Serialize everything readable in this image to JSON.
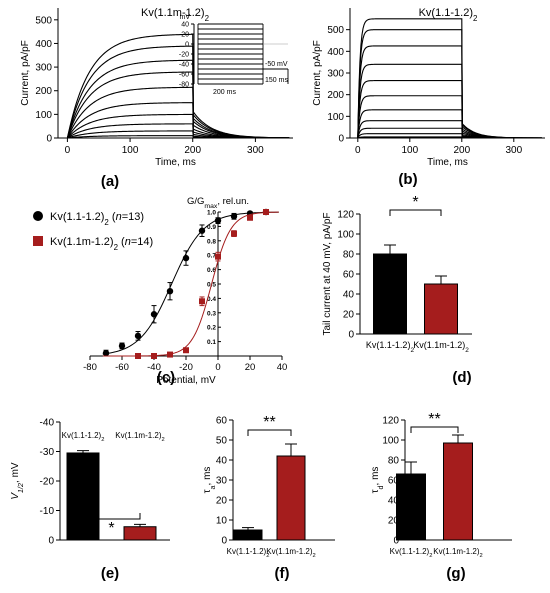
{
  "figure": {
    "panel_labels": [
      "(a)",
      "(b)",
      "(c)",
      "(d)",
      "(e)",
      "(f)",
      "(g)"
    ],
    "colors": {
      "black": "#000000",
      "red": "#a51d1d"
    }
  },
  "chart_data": [
    {
      "id": "a",
      "type": "line",
      "title": "Kv(1.1m-1.2)",
      "title_sub": "2",
      "xlabel": "Time, ms",
      "ylabel": "Current, pA/pF",
      "xlim": [
        -15,
        360
      ],
      "ylim": [
        0,
        550
      ],
      "xticks": [
        0,
        100,
        200,
        300
      ],
      "yticks": [
        0,
        100,
        200,
        300,
        400,
        500
      ],
      "trace_plateaus": [
        10,
        30,
        60,
        100,
        150,
        215,
        280,
        330,
        390,
        440
      ],
      "tail_fraction": 0.25,
      "tail_tau_ms": 30,
      "activation_tau_ms": 35,
      "protocol": {
        "unit_label": "mV",
        "levels_mv": [
          40,
          30,
          20,
          10,
          0,
          -10,
          -20,
          -30,
          -40,
          -50,
          -60,
          -70,
          -80
        ],
        "tick_labels": [
          "40",
          "20",
          "0",
          "-20",
          "-40",
          "-60",
          "-80"
        ],
        "step_label": "200 ms",
        "holding_label": "-50 mV",
        "tail_label": "150 ms"
      }
    },
    {
      "id": "b",
      "type": "line",
      "title": "Kv(1.1-1.2)",
      "title_sub": "2",
      "xlabel": "Time, ms",
      "ylabel": "Current, pA/pF",
      "xlim": [
        -15,
        360
      ],
      "ylim": [
        0,
        600
      ],
      "xticks": [
        0,
        100,
        200,
        300
      ],
      "yticks": [
        0,
        100,
        200,
        300,
        400,
        500
      ],
      "trace_plateaus": [
        5,
        20,
        45,
        80,
        130,
        195,
        265,
        340,
        425,
        500,
        550
      ],
      "tail_fraction": 0.12,
      "tail_tau_ms": 25,
      "activation_tau_ms": 4
    },
    {
      "id": "c",
      "type": "scatter",
      "title": "G/G",
      "title_sub": "max",
      "title_suffix": ", rel.un.",
      "xlabel": "Potential, mV",
      "xlim": [
        -80,
        40
      ],
      "ylim": [
        0,
        1
      ],
      "xticks": [
        -80,
        -60,
        -40,
        -20,
        0,
        20,
        40
      ],
      "yticks": [
        0.1,
        0.2,
        0.3,
        0.4,
        0.5,
        0.6,
        0.7,
        0.8,
        0.9,
        1.0
      ],
      "ytick_labels": [
        "0.1",
        "0.2",
        "0.3",
        "0.4",
        "0.5",
        "0.6",
        "0.7",
        "0.8",
        "0.9",
        "1.0"
      ],
      "series": [
        {
          "name": "Kv(1.1-1.2)",
          "name_sub": "2",
          "name_suffix": " (n=13)",
          "marker": "circle",
          "color": "#000000",
          "x": [
            -70,
            -60,
            -50,
            -40,
            -30,
            -20,
            -10,
            0,
            10,
            20,
            30
          ],
          "y": [
            0.02,
            0.07,
            0.14,
            0.29,
            0.45,
            0.68,
            0.87,
            0.94,
            0.97,
            0.99,
            1.0
          ],
          "err": [
            0.02,
            0.02,
            0.03,
            0.06,
            0.06,
            0.05,
            0.04,
            0.02,
            0.02,
            0.01,
            0.01
          ],
          "boltzmann": {
            "v_half": -29,
            "k": 10
          }
        },
        {
          "name": "Kv(1.1m-1.2)",
          "name_sub": "2",
          "name_suffix": " (n=14)",
          "marker": "square",
          "color": "#a51d1d",
          "x": [
            -50,
            -40,
            -30,
            -20,
            -10,
            0,
            10,
            20,
            30
          ],
          "y": [
            0.0,
            0.0,
            0.01,
            0.04,
            0.38,
            0.69,
            0.85,
            0.96,
            1.0
          ],
          "err": [
            0.0,
            0.0,
            0.01,
            0.01,
            0.03,
            0.03,
            0.02,
            0.01,
            0.0
          ],
          "boltzmann": {
            "v_half": -4,
            "k": 6
          }
        }
      ]
    },
    {
      "id": "d",
      "type": "bar",
      "ylabel": "Tail current at 40 mV, pA/pF",
      "ylim": [
        0,
        120
      ],
      "yticks": [
        0,
        20,
        40,
        60,
        80,
        100,
        120
      ],
      "categories": [
        "Kv(1.1-1.2)",
        "Kv(1.1m-1.2)"
      ],
      "category_subs": [
        "2",
        "2"
      ],
      "values": [
        80,
        50
      ],
      "errors": [
        9,
        8
      ],
      "colors": [
        "#000000",
        "#a51d1d"
      ],
      "significance": "*"
    },
    {
      "id": "e",
      "type": "bar",
      "ylabel": "V",
      "ylabel_sub": "1/2",
      "ylabel_suffix": ", mV",
      "ylim": [
        -40,
        0
      ],
      "yticks": [
        0,
        -10,
        -20,
        -30,
        -40
      ],
      "categories": [
        "Kv(1.1-1.2)",
        "Kv(1.1m-1.2)"
      ],
      "category_subs": [
        "2",
        "2"
      ],
      "values": [
        -29.5,
        -4.5
      ],
      "errors": [
        0.8,
        0.8
      ],
      "colors": [
        "#000000",
        "#a51d1d"
      ],
      "significance": "*"
    },
    {
      "id": "f",
      "type": "bar",
      "ylabel": "τ",
      "ylabel_sub": "a",
      "ylabel_suffix": ", ms",
      "ylim": [
        0,
        60
      ],
      "yticks": [
        0,
        10,
        20,
        30,
        40,
        50,
        60
      ],
      "categories": [
        "Kv(1.1-1.2)",
        "Kv(1.1m-1.2)"
      ],
      "category_subs": [
        "2",
        "2"
      ],
      "values": [
        5,
        42
      ],
      "errors": [
        1.2,
        6
      ],
      "colors": [
        "#000000",
        "#a51d1d"
      ],
      "significance": "**"
    },
    {
      "id": "g",
      "type": "bar",
      "ylabel": "τ",
      "ylabel_sub": "d",
      "ylabel_suffix": ", ms",
      "ylim": [
        0,
        120
      ],
      "yticks": [
        0,
        20,
        40,
        60,
        80,
        100,
        120
      ],
      "categories": [
        "Kv(1.1-1.2)",
        "Kv(1.1m-1.2)"
      ],
      "category_subs": [
        "2",
        "2"
      ],
      "values": [
        66,
        97
      ],
      "errors": [
        12,
        8
      ],
      "colors": [
        "#000000",
        "#a51d1d"
      ],
      "significance": "**"
    }
  ]
}
